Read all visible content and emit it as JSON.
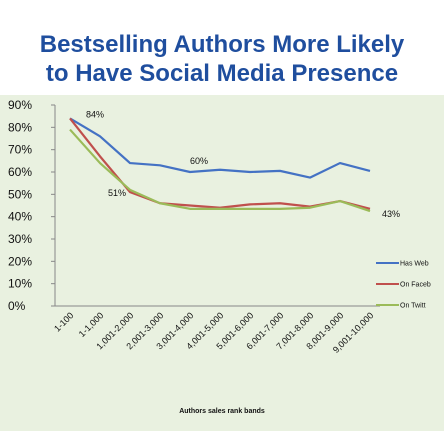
{
  "title_line1": "Bestselling Authors More Likely",
  "title_line2": "to Have Social Media Presence",
  "chart_data": {
    "type": "line",
    "title": "Bestselling Authors More Likely to Have Social Media Presence",
    "xlabel": "Authors sales rank bands",
    "ylabel": "",
    "ylim": [
      0,
      90
    ],
    "y_ticks": [
      "0%",
      "10%",
      "20%",
      "30%",
      "40%",
      "50%",
      "60%",
      "70%",
      "80%",
      "90%"
    ],
    "grid": false,
    "legend_position": "right",
    "categories": [
      "1-100",
      "1-1,000",
      "1,001-2,000",
      "2,001-3,000",
      "3,001-4,000",
      "4,001-5,000",
      "5,001-6,000",
      "6,001-7,000",
      "7,001-8,000",
      "8,001-9,000",
      "9,001-10,000"
    ],
    "series": [
      {
        "name": "Has Web",
        "color": "#4472c4",
        "values": [
          84,
          76,
          64,
          63,
          60,
          61,
          60,
          60.5,
          57.5,
          64,
          60.5
        ]
      },
      {
        "name": "On Faceb",
        "color": "#c0504d",
        "values": [
          84,
          67,
          51,
          46,
          45,
          44,
          45.5,
          46,
          44.5,
          47,
          43.5
        ]
      },
      {
        "name": "On Twitt",
        "color": "#9bbb59",
        "values": [
          79,
          64,
          52,
          46,
          43.5,
          43.5,
          43.5,
          43.5,
          44,
          47,
          42.5
        ]
      }
    ],
    "annotations": [
      "84%",
      "60%",
      "51%",
      "43%"
    ]
  }
}
